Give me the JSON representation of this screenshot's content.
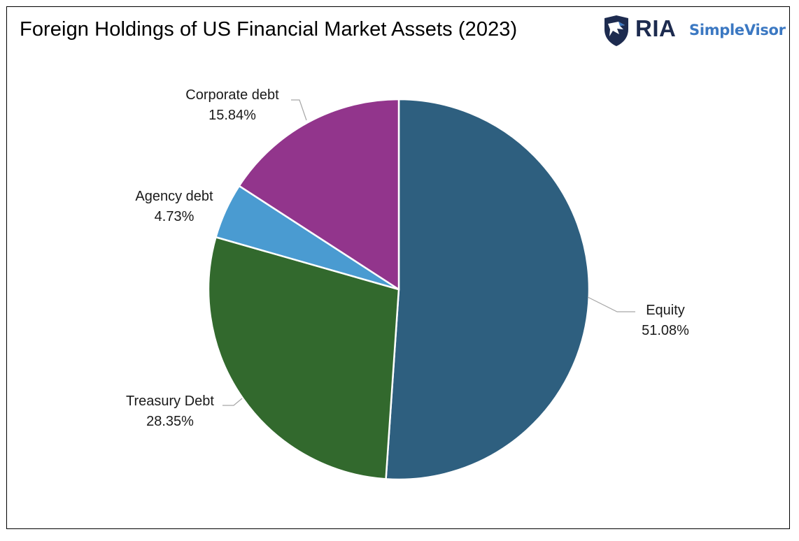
{
  "header": {
    "title": "Foreign Holdings of US Financial Market Assets (2023)",
    "logo_primary": "RIA",
    "logo_secondary": "SimpleVisor",
    "logo_icon": "eagle-shield-icon"
  },
  "chart_data": {
    "type": "pie",
    "title": "Foreign Holdings of US Financial Market Assets (2023)",
    "start": "12 o'clock, clockwise",
    "slices": [
      {
        "name": "Equity",
        "value": 51.08,
        "label": "51.08%",
        "color": "#2e5f7f"
      },
      {
        "name": "Treasury Debt",
        "value": 28.35,
        "label": "28.35%",
        "color": "#32692d"
      },
      {
        "name": "Agency debt",
        "value": 4.73,
        "label": "4.73%",
        "color": "#4a9bd1"
      },
      {
        "name": "Corporate debt",
        "value": 15.84,
        "label": "15.84%",
        "color": "#92358c"
      }
    ],
    "legend": "none",
    "data_labels": "outside with leader lines"
  }
}
